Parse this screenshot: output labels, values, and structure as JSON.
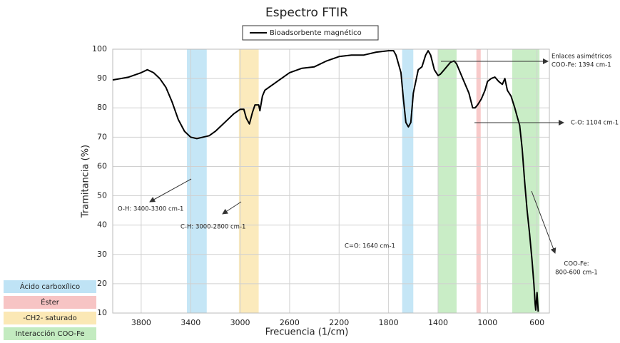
{
  "chart_data": {
    "type": "line",
    "title": "Espectro FTIR",
    "xlabel": "Frecuencia (1/cm)",
    "ylabel": "Tramitancia (%)",
    "xlim": [
      4030,
      500
    ],
    "ylim": [
      10,
      100
    ],
    "xticks": [
      3800,
      3400,
      3000,
      2600,
      2200,
      1800,
      1400,
      1000,
      600
    ],
    "yticks": [
      10,
      20,
      30,
      40,
      50,
      60,
      70,
      80,
      90,
      100
    ],
    "grid": true,
    "x": [
      4030,
      3900,
      3800,
      3750,
      3700,
      3650,
      3600,
      3550,
      3500,
      3450,
      3400,
      3350,
      3300,
      3250,
      3200,
      3150,
      3100,
      3050,
      3000,
      2970,
      2950,
      2925,
      2900,
      2880,
      2850,
      2840,
      2820,
      2800,
      2700,
      2600,
      2500,
      2400,
      2300,
      2200,
      2100,
      2000,
      1900,
      1800,
      1760,
      1740,
      1700,
      1680,
      1660,
      1640,
      1620,
      1600,
      1560,
      1530,
      1500,
      1480,
      1460,
      1430,
      1400,
      1380,
      1350,
      1300,
      1270,
      1250,
      1200,
      1150,
      1120,
      1100,
      1080,
      1050,
      1020,
      1000,
      970,
      940,
      910,
      880,
      860,
      840,
      810,
      780,
      760,
      740,
      720,
      700,
      680,
      660,
      640,
      625,
      615,
      610,
      600,
      590
    ],
    "series": [
      {
        "name": "Bioadsorbente magnético",
        "color": "#000000",
        "values": [
          89.5,
          90.5,
          92,
          93,
          92,
          90,
          87,
          82,
          76,
          72,
          70,
          69.5,
          70,
          70.5,
          72,
          74,
          76,
          78,
          79.5,
          79.5,
          76.5,
          74.5,
          78.5,
          81,
          81,
          79,
          84,
          86,
          89,
          92,
          93.5,
          94,
          96,
          97.5,
          98,
          98,
          99,
          99.5,
          99.5,
          98,
          92,
          83,
          75,
          73.5,
          75,
          85,
          93,
          94,
          98,
          99.5,
          98,
          93,
          91,
          91.5,
          93,
          95.5,
          96,
          95,
          90,
          85,
          80,
          80,
          81,
          83,
          86,
          89,
          90,
          90.5,
          89,
          88,
          90,
          86,
          84,
          80,
          77,
          74,
          66,
          55,
          45,
          37,
          28,
          20,
          13,
          11,
          17,
          10.5
        ]
      }
    ],
    "bands": [
      {
        "from": 3430,
        "to": 3270,
        "color": "#bfe3f5"
      },
      {
        "from": 3010,
        "to": 2850,
        "color": "#fbe8b5"
      },
      {
        "from": 1690,
        "to": 1600,
        "color": "#bfe3f5"
      },
      {
        "from": 1400,
        "to": 1250,
        "color": "#c3ebc0"
      },
      {
        "from": 1090,
        "to": 1055,
        "color": "#f7c4c4"
      },
      {
        "from": 800,
        "to": 580,
        "color": "#c3ebc0"
      }
    ],
    "band_legend": [
      {
        "label": "Ácido carboxílico",
        "color": "#bfe3f5"
      },
      {
        "label": "Éster",
        "color": "#f7c4c4"
      },
      {
        "label": "-CH2- saturado",
        "color": "#fbe8b5"
      },
      {
        "label": "Interacción COO-Fe",
        "color": "#c3ebc0"
      }
    ],
    "annotations": [
      {
        "lines": [
          "O-H: 3400-3300 cm-1"
        ]
      },
      {
        "lines": [
          "C-H: 3000-2800 cm-1"
        ]
      },
      {
        "lines": [
          "C=O: 1640 cm-1"
        ]
      },
      {
        "lines": [
          "Enlaces asimétricos",
          "COO-Fe: 1394 cm-1"
        ]
      },
      {
        "lines": [
          "C-O: 1104 cm-1"
        ]
      },
      {
        "lines": [
          "COO-Fe:",
          "800-600 cm-1"
        ]
      }
    ]
  }
}
